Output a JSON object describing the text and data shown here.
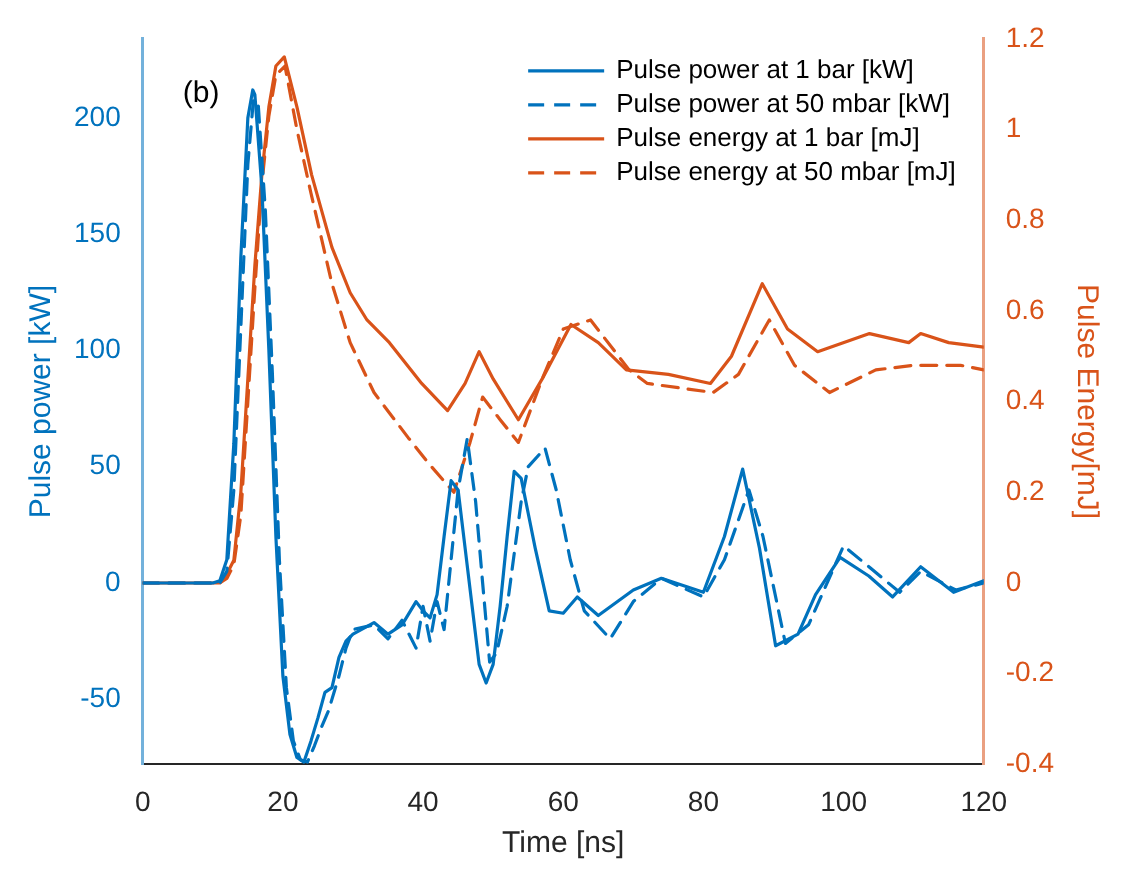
{
  "chart_data": {
    "type": "line",
    "xlabel": "Time [ns]",
    "ylabel": "Pulse power [kW]",
    "y2label": "Pulse Energy[mJ]",
    "annotations": [
      "(b)"
    ],
    "xlim": [
      0,
      120
    ],
    "xticks": [
      0,
      20,
      40,
      60,
      80,
      100,
      120
    ],
    "ylim": [
      -78,
      234
    ],
    "yticks": [
      -50,
      0,
      50,
      100,
      150,
      200
    ],
    "y2lim": [
      -0.4,
      1.2
    ],
    "y2ticks": [
      -0.4,
      -0.2,
      0,
      0.2,
      0.4,
      0.6,
      0.8,
      1,
      1.2
    ],
    "grid": false,
    "legend": "top right",
    "marker": "none",
    "series": [
      {
        "name": "Pulse power at 1 bar [kW]",
        "color": "#0072bd",
        "line_style": "solid",
        "x": [
          0,
          10,
          11,
          12,
          13,
          14,
          15,
          15.7,
          16,
          17,
          18,
          19,
          20,
          21,
          22,
          23,
          24,
          25,
          26,
          27,
          28,
          29,
          30,
          33,
          35,
          37,
          39,
          40,
          41,
          42,
          43,
          44,
          45,
          46,
          47,
          48,
          49,
          50,
          51,
          52,
          53,
          54,
          55,
          56,
          58,
          60,
          62,
          65,
          70,
          74,
          80,
          83,
          85.6,
          88,
          90.3,
          93.5,
          96,
          99.5,
          103.6,
          107,
          111,
          115.7,
          120
        ],
        "values": [
          0,
          0,
          1,
          10,
          60,
          140,
          200,
          212,
          210,
          170,
          100,
          20,
          -40,
          -65,
          -75,
          -77,
          -68,
          -58,
          -47,
          -45,
          -32,
          -25,
          -22,
          -17,
          -22,
          -18,
          -8,
          -12,
          -15,
          -5,
          20,
          44,
          40,
          15,
          -10,
          -35,
          -43,
          -35,
          -10,
          20,
          48,
          45,
          30,
          15,
          -12,
          -13,
          -6,
          -14,
          -3,
          2,
          -4,
          20,
          49,
          15,
          -27,
          -22,
          -5,
          11,
          3,
          -6,
          7,
          -4,
          1
        ]
      },
      {
        "name": "Pulse power at 50 mbar [kW]",
        "color": "#0072bd",
        "line_style": "dashed",
        "x": [
          0,
          10,
          11,
          12,
          13,
          14,
          15,
          15.8,
          16.5,
          17.5,
          18.5,
          19.5,
          20.5,
          21.5,
          22.5,
          23.5,
          24.5,
          25.5,
          26.5,
          28,
          29,
          30,
          33,
          35,
          37,
          39,
          40,
          41,
          42,
          43,
          44,
          45,
          46.3,
          47.5,
          48.5,
          49.5,
          50.5,
          52,
          54,
          55,
          57.4,
          59,
          61,
          63,
          66.7,
          70,
          74,
          80,
          83,
          86.5,
          88.5,
          91.7,
          95,
          100,
          104,
          108,
          111,
          116,
          120
        ],
        "values": [
          0,
          0,
          0,
          5,
          40,
          110,
          180,
          208,
          205,
          160,
          90,
          10,
          -45,
          -68,
          -76,
          -77,
          -70,
          -62,
          -55,
          -40,
          -28,
          -20,
          -18,
          -24,
          -16,
          -28,
          -10,
          -25,
          -8,
          -20,
          10,
          40,
          62,
          35,
          0,
          -34,
          -30,
          -10,
          35,
          50,
          58,
          40,
          10,
          -12,
          -24,
          -8,
          2,
          -6,
          10,
          40,
          20,
          -26,
          -18,
          16,
          6,
          -4,
          5,
          -3,
          0
        ]
      },
      {
        "name": "Pulse energy at 1 bar [mJ]",
        "color": "#d95319",
        "line_style": "solid",
        "axis": "y2",
        "x": [
          0,
          11,
          12,
          13,
          14,
          15,
          16,
          17,
          18,
          19,
          20.2,
          22,
          24.1,
          27,
          29.6,
          32,
          35.2,
          39.8,
          43.5,
          46,
          48,
          50,
          53.6,
          57,
          61.1,
          65,
          69,
          75,
          81,
          84,
          88.4,
          92,
          96.3,
          103.7,
          109.3,
          111,
          115,
          120
        ],
        "values": [
          0,
          0,
          0.02,
          0.05,
          0.2,
          0.45,
          0.7,
          0.9,
          1.05,
          1.14,
          1.16,
          1.05,
          0.9,
          0.74,
          0.64,
          0.58,
          0.53,
          0.44,
          0.38,
          0.44,
          0.51,
          0.45,
          0.36,
          0.45,
          0.57,
          0.53,
          0.47,
          0.46,
          0.44,
          0.5,
          0.66,
          0.56,
          0.51,
          0.55,
          0.53,
          0.55,
          0.53,
          0.52
        ]
      },
      {
        "name": "Pulse energy at 50 mbar [mJ]",
        "color": "#d95319",
        "line_style": "dashed",
        "axis": "y2",
        "x": [
          0,
          11,
          12,
          13,
          14,
          15,
          16,
          17,
          18,
          19,
          20.3,
          22,
          24,
          27,
          29.6,
          33,
          37.9,
          41,
          44.4,
          46.7,
          48.5,
          51,
          53.6,
          57,
          60,
          63.9,
          69.4,
          72,
          81.4,
          85,
          89.4,
          93,
          98,
          104.6,
          110,
          116.7,
          120
        ],
        "values": [
          0,
          0,
          0.01,
          0.04,
          0.15,
          0.4,
          0.65,
          0.88,
          1.03,
          1.12,
          1.14,
          1.0,
          0.86,
          0.66,
          0.53,
          0.42,
          0.32,
          0.26,
          0.2,
          0.31,
          0.41,
          0.36,
          0.31,
          0.45,
          0.56,
          0.58,
          0.47,
          0.44,
          0.42,
          0.46,
          0.58,
          0.48,
          0.42,
          0.47,
          0.48,
          0.48,
          0.47
        ]
      }
    ]
  }
}
